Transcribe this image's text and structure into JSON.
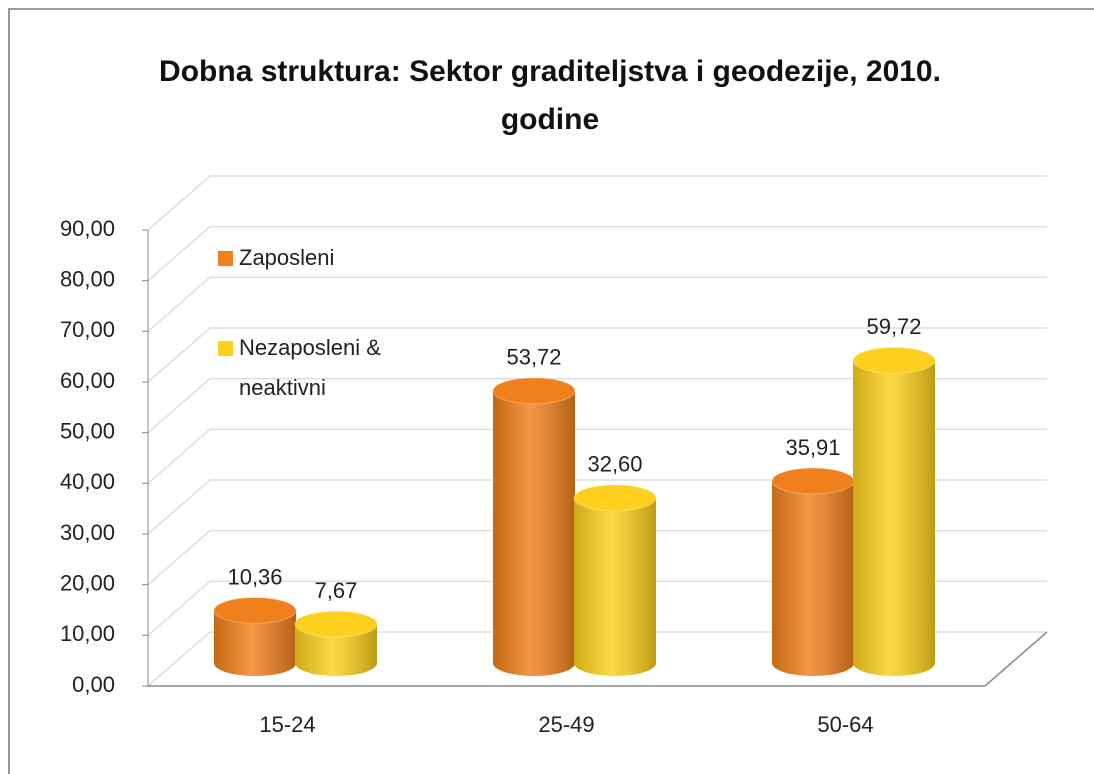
{
  "chart_data": {
    "type": "bar3d",
    "title": "Dobna struktura: Sektor graditeljstva i geodezije, 2010. godine",
    "categories": [
      "15-24",
      "25-49",
      "50-64"
    ],
    "series": [
      {
        "name": "Zaposleni",
        "color": "#f0801c",
        "values": [
          10.36,
          53.72,
          35.91
        ],
        "value_labels": [
          "10,36",
          "53,72",
          "35,91"
        ]
      },
      {
        "name": "Nezaposleni & neaktivni",
        "color": "#fcd01c",
        "values": [
          7.67,
          32.6,
          59.72
        ],
        "value_labels": [
          "7,67",
          "32,60",
          "59,72"
        ]
      }
    ],
    "ylim": [
      0,
      90
    ],
    "yticks": [
      {
        "value": 0,
        "label": "0,00"
      },
      {
        "value": 10,
        "label": "10,00"
      },
      {
        "value": 20,
        "label": "20,00"
      },
      {
        "value": 30,
        "label": "30,00"
      },
      {
        "value": 40,
        "label": "40,00"
      },
      {
        "value": 50,
        "label": "50,00"
      },
      {
        "value": 60,
        "label": "60,00"
      },
      {
        "value": 70,
        "label": "70,00"
      },
      {
        "value": 80,
        "label": "80,00"
      },
      {
        "value": 90,
        "label": "90,00"
      }
    ],
    "grid": true,
    "legend": "top-left"
  }
}
